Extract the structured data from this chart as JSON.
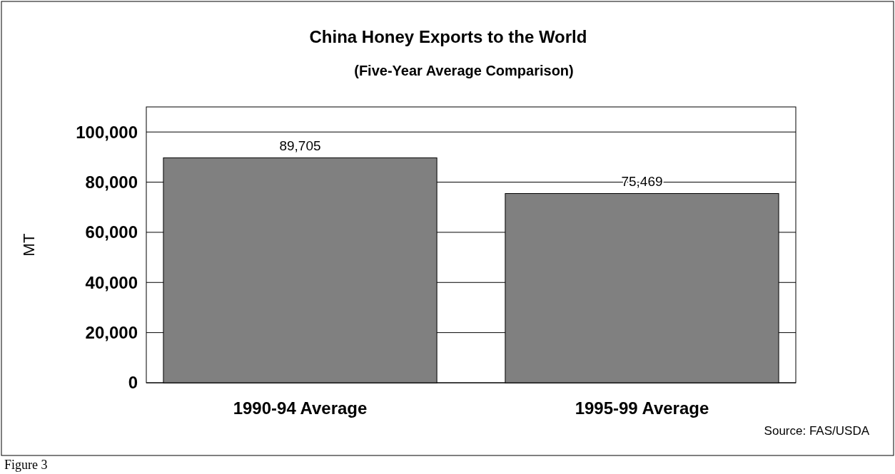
{
  "chart_data": {
    "type": "bar",
    "title": "China Honey Exports to the World",
    "subtitle": "(Five-Year Average Comparison)",
    "ylabel": "MT",
    "categories": [
      "1990-94 Average",
      "1995-99 Average"
    ],
    "values": [
      89705,
      75469
    ],
    "value_labels": [
      "89,705",
      "75,469"
    ],
    "color": "#808080",
    "ylim": [
      0,
      110000
    ],
    "yticks": [
      {
        "value": 0,
        "label": "0"
      },
      {
        "value": 20000,
        "label": "20,000"
      },
      {
        "value": 40000,
        "label": "40,000"
      },
      {
        "value": 60000,
        "label": "60,000"
      },
      {
        "value": 80000,
        "label": "80,000"
      },
      {
        "value": 100000,
        "label": "100,000"
      }
    ],
    "grid": "y",
    "annotations": [
      "Source:  FAS/USDA",
      "Figure 3"
    ]
  }
}
